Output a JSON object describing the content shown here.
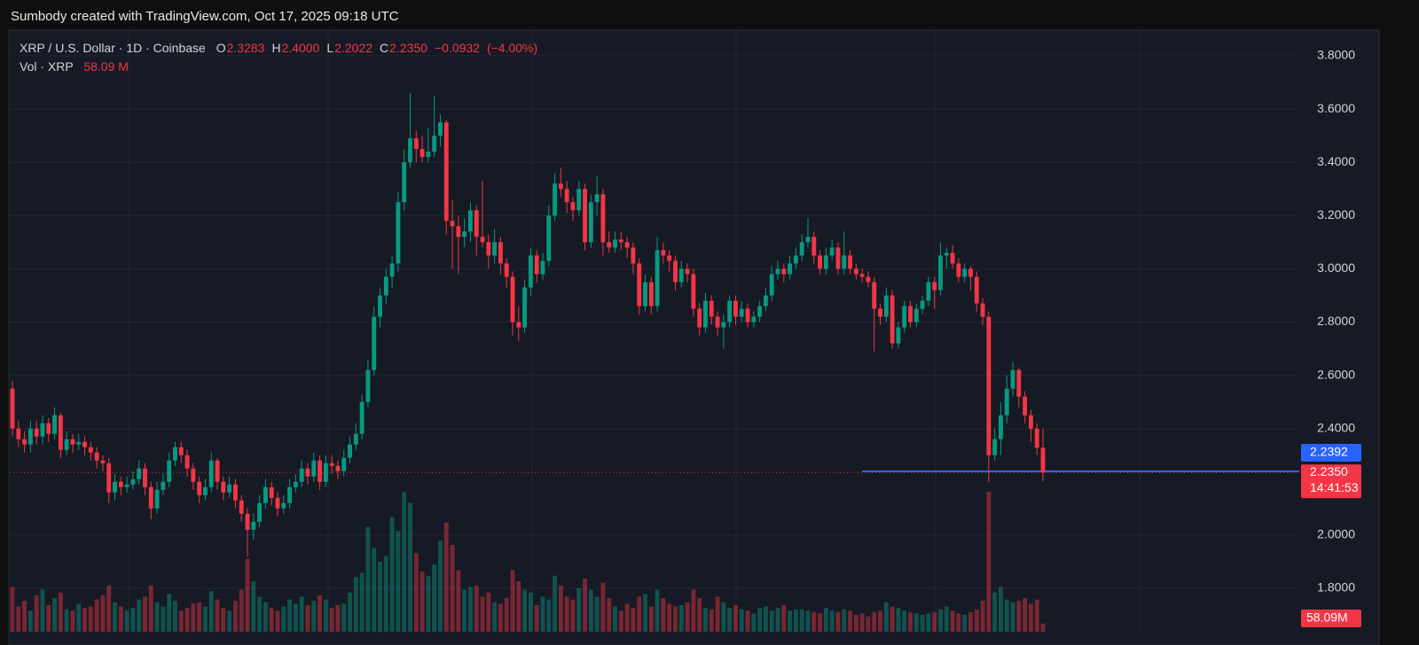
{
  "header": {
    "title": "Sumbody created with TradingView.com, Oct 17, 2025 09:18 UTC"
  },
  "chart_data": {
    "type": "candlestick",
    "symbol": "XRP / U.S. Dollar · 1D · Coinbase",
    "ohlc_legend": [
      {
        "key": "O",
        "value": 2.3283,
        "label": "2.3283"
      },
      {
        "key": "H",
        "value": 2.4,
        "label": "2.4000"
      },
      {
        "key": "L",
        "value": 2.2022,
        "label": "2.2022"
      },
      {
        "key": "C",
        "value": 2.235,
        "label": "2.2350"
      }
    ],
    "change": {
      "value": -0.0932,
      "label": "−0.0932"
    },
    "change_pct": {
      "value": -4,
      "label": "(−4.00%)"
    },
    "volume_legend": {
      "name": "Vol · XRP",
      "value": 58.09,
      "label": "58.09 M"
    },
    "up_color": "#089981",
    "down_color": "#f23645",
    "ylim": [
      1.637,
      3.8932
    ],
    "yticks": [
      {
        "value": 1.8,
        "label": "1.8000"
      },
      {
        "value": 2.0,
        "label": "2.0000"
      },
      {
        "value": 2.4,
        "label": "2.4000"
      },
      {
        "value": 2.6,
        "label": "2.6000"
      },
      {
        "value": 2.8,
        "label": "2.8000"
      },
      {
        "value": 3.0,
        "label": "3.0000"
      },
      {
        "value": 3.2,
        "label": "3.2000"
      },
      {
        "value": 3.4,
        "label": "3.4000"
      },
      {
        "value": 3.6,
        "label": "3.6000"
      },
      {
        "value": 3.8,
        "label": "3.8000"
      }
    ],
    "grid": true,
    "ohlc": [
      [
        2.55,
        2.58,
        2.37,
        2.4
      ],
      [
        2.4,
        2.43,
        2.33,
        2.36
      ],
      [
        2.36,
        2.39,
        2.31,
        2.34
      ],
      [
        2.34,
        2.43,
        2.31,
        2.4
      ],
      [
        2.4,
        2.43,
        2.34,
        2.37
      ],
      [
        2.37,
        2.45,
        2.34,
        2.42
      ],
      [
        2.42,
        2.44,
        2.35,
        2.38
      ],
      [
        2.38,
        2.48,
        2.36,
        2.45
      ],
      [
        2.45,
        2.46,
        2.29,
        2.32
      ],
      [
        2.32,
        2.39,
        2.3,
        2.36
      ],
      [
        2.36,
        2.38,
        2.31,
        2.34
      ],
      [
        2.34,
        2.38,
        2.32,
        2.35
      ],
      [
        2.35,
        2.37,
        2.3,
        2.33
      ],
      [
        2.33,
        2.35,
        2.28,
        2.31
      ],
      [
        2.31,
        2.33,
        2.25,
        2.28
      ],
      [
        2.28,
        2.3,
        2.24,
        2.27
      ],
      [
        2.27,
        2.29,
        2.12,
        2.16
      ],
      [
        2.16,
        2.23,
        2.13,
        2.2
      ],
      [
        2.2,
        2.22,
        2.15,
        2.18
      ],
      [
        2.18,
        2.22,
        2.16,
        2.19
      ],
      [
        2.19,
        2.24,
        2.17,
        2.21
      ],
      [
        2.21,
        2.28,
        2.19,
        2.25
      ],
      [
        2.25,
        2.27,
        2.15,
        2.18
      ],
      [
        2.18,
        2.2,
        2.06,
        2.1
      ],
      [
        2.1,
        2.2,
        2.08,
        2.17
      ],
      [
        2.17,
        2.23,
        2.15,
        2.2
      ],
      [
        2.2,
        2.31,
        2.18,
        2.28
      ],
      [
        2.28,
        2.35,
        2.26,
        2.33
      ],
      [
        2.33,
        2.35,
        2.27,
        2.3
      ],
      [
        2.3,
        2.32,
        2.22,
        2.25
      ],
      [
        2.25,
        2.27,
        2.17,
        2.2
      ],
      [
        2.2,
        2.22,
        2.12,
        2.15
      ],
      [
        2.15,
        2.21,
        2.13,
        2.18
      ],
      [
        2.18,
        2.31,
        2.16,
        2.28
      ],
      [
        2.28,
        2.29,
        2.17,
        2.2
      ],
      [
        2.2,
        2.22,
        2.13,
        2.16
      ],
      [
        2.16,
        2.22,
        2.14,
        2.19
      ],
      [
        2.19,
        2.21,
        2.1,
        2.13
      ],
      [
        2.13,
        2.15,
        2.05,
        2.08
      ],
      [
        2.08,
        2.1,
        1.92,
        2.02
      ],
      [
        2.02,
        2.08,
        1.98,
        2.05
      ],
      [
        2.05,
        2.15,
        2.03,
        2.12
      ],
      [
        2.12,
        2.21,
        2.1,
        2.18
      ],
      [
        2.18,
        2.2,
        2.11,
        2.14
      ],
      [
        2.14,
        2.16,
        2.07,
        2.1
      ],
      [
        2.1,
        2.15,
        2.08,
        2.12
      ],
      [
        2.12,
        2.21,
        2.1,
        2.18
      ],
      [
        2.18,
        2.23,
        2.16,
        2.2
      ],
      [
        2.2,
        2.28,
        2.18,
        2.25
      ],
      [
        2.25,
        2.27,
        2.19,
        2.22
      ],
      [
        2.22,
        2.31,
        2.2,
        2.28
      ],
      [
        2.28,
        2.3,
        2.17,
        2.2
      ],
      [
        2.2,
        2.3,
        2.18,
        2.27
      ],
      [
        2.27,
        2.3,
        2.23,
        2.26
      ],
      [
        2.26,
        2.28,
        2.21,
        2.24
      ],
      [
        2.24,
        2.32,
        2.22,
        2.29
      ],
      [
        2.29,
        2.37,
        2.27,
        2.34
      ],
      [
        2.34,
        2.42,
        2.32,
        2.38
      ],
      [
        2.38,
        2.53,
        2.36,
        2.5
      ],
      [
        2.5,
        2.66,
        2.48,
        2.62
      ],
      [
        2.62,
        2.86,
        2.6,
        2.82
      ],
      [
        2.82,
        2.93,
        2.78,
        2.9
      ],
      [
        2.9,
        3.0,
        2.87,
        2.97
      ],
      [
        2.97,
        3.05,
        2.93,
        3.02
      ],
      [
        3.02,
        3.29,
        2.99,
        3.25
      ],
      [
        3.25,
        3.45,
        3.22,
        3.4
      ],
      [
        3.4,
        3.66,
        3.38,
        3.49
      ],
      [
        3.49,
        3.52,
        3.4,
        3.45
      ],
      [
        3.45,
        3.5,
        3.4,
        3.42
      ],
      [
        3.42,
        3.53,
        3.4,
        3.44
      ],
      [
        3.44,
        3.65,
        3.42,
        3.5
      ],
      [
        3.5,
        3.58,
        3.46,
        3.55
      ],
      [
        3.55,
        3.56,
        3.13,
        3.18
      ],
      [
        3.18,
        3.26,
        3.0,
        3.16
      ],
      [
        3.16,
        3.2,
        2.98,
        3.12
      ],
      [
        3.12,
        3.19,
        3.08,
        3.14
      ],
      [
        3.14,
        3.25,
        3.1,
        3.22
      ],
      [
        3.22,
        3.24,
        3.05,
        3.12
      ],
      [
        3.12,
        3.33,
        3.08,
        3.1
      ],
      [
        3.1,
        3.13,
        3.0,
        3.05
      ],
      [
        3.05,
        3.15,
        3.02,
        3.1
      ],
      [
        3.1,
        3.12,
        2.98,
        3.02
      ],
      [
        3.02,
        3.04,
        2.93,
        2.97
      ],
      [
        2.97,
        2.99,
        2.75,
        2.8
      ],
      [
        2.8,
        2.86,
        2.73,
        2.78
      ],
      [
        2.78,
        2.96,
        2.76,
        2.93
      ],
      [
        2.93,
        3.08,
        2.9,
        3.05
      ],
      [
        3.05,
        3.07,
        2.95,
        2.98
      ],
      [
        2.98,
        3.06,
        2.96,
        3.03
      ],
      [
        3.03,
        3.24,
        3.01,
        3.2
      ],
      [
        3.2,
        3.36,
        3.18,
        3.32
      ],
      [
        3.32,
        3.38,
        3.27,
        3.3
      ],
      [
        3.3,
        3.33,
        3.21,
        3.25
      ],
      [
        3.25,
        3.27,
        3.18,
        3.22
      ],
      [
        3.22,
        3.33,
        3.2,
        3.3
      ],
      [
        3.3,
        3.32,
        3.07,
        3.1
      ],
      [
        3.1,
        3.28,
        3.08,
        3.25
      ],
      [
        3.25,
        3.35,
        3.2,
        3.28
      ],
      [
        3.28,
        3.3,
        3.05,
        3.1
      ],
      [
        3.1,
        3.14,
        3.06,
        3.08
      ],
      [
        3.08,
        3.14,
        3.06,
        3.11
      ],
      [
        3.11,
        3.14,
        3.07,
        3.1
      ],
      [
        3.1,
        3.12,
        3.04,
        3.08
      ],
      [
        3.08,
        3.1,
        2.98,
        3.02
      ],
      [
        3.02,
        3.04,
        2.83,
        2.86
      ],
      [
        2.86,
        2.98,
        2.84,
        2.95
      ],
      [
        2.95,
        2.97,
        2.83,
        2.86
      ],
      [
        2.86,
        3.12,
        2.84,
        3.07
      ],
      [
        3.07,
        3.1,
        3.02,
        3.05
      ],
      [
        3.05,
        3.07,
        2.99,
        3.03
      ],
      [
        3.03,
        3.05,
        2.92,
        2.95
      ],
      [
        2.95,
        3.03,
        2.93,
        3.0
      ],
      [
        3.0,
        3.02,
        2.95,
        2.98
      ],
      [
        2.98,
        3.0,
        2.82,
        2.85
      ],
      [
        2.85,
        2.87,
        2.75,
        2.78
      ],
      [
        2.78,
        2.91,
        2.76,
        2.88
      ],
      [
        2.88,
        2.9,
        2.79,
        2.82
      ],
      [
        2.82,
        2.84,
        2.75,
        2.78
      ],
      [
        2.78,
        2.83,
        2.7,
        2.8
      ],
      [
        2.8,
        2.9,
        2.78,
        2.88
      ],
      [
        2.88,
        2.9,
        2.79,
        2.82
      ],
      [
        2.82,
        2.88,
        2.8,
        2.85
      ],
      [
        2.85,
        2.87,
        2.78,
        2.8
      ],
      [
        2.8,
        2.84,
        2.78,
        2.82
      ],
      [
        2.82,
        2.88,
        2.8,
        2.86
      ],
      [
        2.86,
        2.93,
        2.84,
        2.9
      ],
      [
        2.9,
        3.01,
        2.88,
        2.98
      ],
      [
        2.98,
        3.03,
        2.96,
        3.0
      ],
      [
        3.0,
        3.02,
        2.95,
        2.98
      ],
      [
        2.98,
        3.05,
        2.96,
        3.02
      ],
      [
        3.02,
        3.08,
        3.0,
        3.05
      ],
      [
        3.05,
        3.13,
        3.03,
        3.1
      ],
      [
        3.1,
        3.19,
        3.08,
        3.12
      ],
      [
        3.12,
        3.14,
        3.02,
        3.05
      ],
      [
        3.05,
        3.07,
        2.98,
        3.0
      ],
      [
        3.0,
        3.08,
        2.98,
        3.05
      ],
      [
        3.05,
        3.11,
        3.03,
        3.08
      ],
      [
        3.08,
        3.1,
        2.98,
        3.0
      ],
      [
        3.0,
        3.14,
        2.98,
        3.05
      ],
      [
        3.05,
        3.07,
        2.98,
        3.0
      ],
      [
        3.0,
        3.02,
        2.96,
        2.98
      ],
      [
        2.98,
        3.0,
        2.95,
        2.97
      ],
      [
        2.97,
        2.99,
        2.93,
        2.95
      ],
      [
        2.95,
        2.97,
        2.69,
        2.85
      ],
      [
        2.85,
        2.87,
        2.79,
        2.82
      ],
      [
        2.82,
        2.93,
        2.8,
        2.9
      ],
      [
        2.9,
        2.92,
        2.7,
        2.72
      ],
      [
        2.72,
        2.8,
        2.7,
        2.78
      ],
      [
        2.78,
        2.88,
        2.76,
        2.86
      ],
      [
        2.86,
        2.88,
        2.78,
        2.8
      ],
      [
        2.8,
        2.87,
        2.78,
        2.85
      ],
      [
        2.85,
        2.9,
        2.83,
        2.88
      ],
      [
        2.88,
        2.97,
        2.86,
        2.95
      ],
      [
        2.95,
        2.97,
        2.85,
        2.92
      ],
      [
        2.92,
        3.1,
        2.9,
        3.05
      ],
      [
        3.05,
        3.08,
        3.0,
        3.06
      ],
      [
        3.06,
        3.09,
        3.0,
        3.02
      ],
      [
        3.02,
        3.04,
        2.95,
        2.97
      ],
      [
        2.97,
        3.02,
        2.95,
        3.0
      ],
      [
        3.0,
        3.01,
        2.92,
        2.97
      ],
      [
        2.97,
        2.99,
        2.84,
        2.87
      ],
      [
        2.87,
        2.89,
        2.79,
        2.82
      ],
      [
        2.82,
        2.84,
        2.2,
        2.3
      ],
      [
        2.3,
        2.4,
        2.28,
        2.36
      ],
      [
        2.36,
        2.5,
        2.3,
        2.45
      ],
      [
        2.45,
        2.6,
        2.42,
        2.55
      ],
      [
        2.55,
        2.65,
        2.52,
        2.62
      ],
      [
        2.62,
        2.63,
        2.48,
        2.52
      ],
      [
        2.52,
        2.54,
        2.42,
        2.45
      ],
      [
        2.45,
        2.47,
        2.35,
        2.4
      ],
      [
        2.4,
        2.42,
        2.3,
        2.3283
      ],
      [
        2.3283,
        2.4,
        2.2022,
        2.235
      ]
    ],
    "volume": {
      "values": [
        320,
        180,
        220,
        150,
        260,
        300,
        190,
        240,
        280,
        160,
        150,
        200,
        170,
        180,
        230,
        260,
        330,
        210,
        180,
        150,
        170,
        230,
        250,
        330,
        210,
        180,
        270,
        220,
        150,
        170,
        200,
        210,
        180,
        290,
        230,
        170,
        150,
        220,
        300,
        520,
        360,
        250,
        210,
        170,
        150,
        180,
        230,
        200,
        250,
        190,
        220,
        260,
        230,
        170,
        190,
        200,
        280,
        390,
        420,
        750,
        600,
        500,
        540,
        820,
        720,
        1000,
        920,
        560,
        430,
        400,
        480,
        650,
        780,
        620,
        440,
        300,
        320,
        330,
        250,
        280,
        210,
        200,
        240,
        440,
        360,
        300,
        280,
        190,
        250,
        230,
        400,
        330,
        250,
        230,
        310,
        380,
        300,
        250,
        350,
        240,
        180,
        150,
        200,
        170,
        250,
        270,
        180,
        300,
        240,
        200,
        180,
        190,
        210,
        300,
        240,
        170,
        160,
        250,
        210,
        170,
        190,
        160,
        150,
        130,
        170,
        180,
        150,
        170,
        190,
        150,
        160,
        160,
        150,
        140,
        130,
        170,
        150,
        140,
        160,
        150,
        120,
        130,
        110,
        140,
        150,
        210,
        180,
        170,
        150,
        140,
        130,
        120,
        130,
        140,
        160,
        180,
        150,
        130,
        120,
        140,
        160,
        220,
        1000,
        280,
        320,
        230,
        210,
        220,
        240,
        200,
        230,
        58.09
      ],
      "last": {
        "value": 58.09,
        "label": "58.09M"
      }
    },
    "price_lines": [
      {
        "value": 2.2392,
        "label": "2.2392",
        "color": "#2962ff"
      }
    ],
    "last_price": {
      "value": 2.235,
      "label": "2.2350",
      "countdown": "14:41:53",
      "color": "#f23645"
    }
  }
}
